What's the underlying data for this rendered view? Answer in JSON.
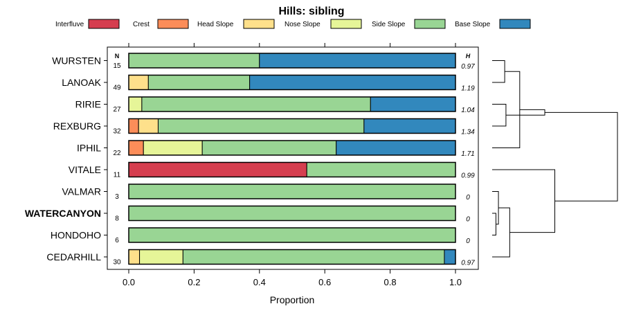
{
  "chart_data": {
    "type": "bar",
    "stacked": true,
    "orientation": "horizontal",
    "title": "Hills: sibling",
    "xlabel": "Proportion",
    "ylabel": "",
    "xlim": [
      0,
      1
    ],
    "xticks": [
      "0.0",
      "0.2",
      "0.4",
      "0.6",
      "0.8",
      "1.0"
    ],
    "n_header": "N",
    "h_header": "H",
    "legend_position": "top",
    "segments": [
      {
        "name": "Interfluve",
        "color": "#D53E4F"
      },
      {
        "name": "Crest",
        "color": "#FC8D59"
      },
      {
        "name": "Head Slope",
        "color": "#FEE08B"
      },
      {
        "name": "Nose Slope",
        "color": "#E6F598"
      },
      {
        "name": "Side Slope",
        "color": "#99D594"
      },
      {
        "name": "Base Slope",
        "color": "#3288BD"
      }
    ],
    "rows": [
      {
        "name": "WURSTEN",
        "n": "15",
        "h": "0.97",
        "bold": false,
        "values": [
          0,
          0,
          0,
          0,
          0.4,
          0.6
        ]
      },
      {
        "name": "LANOAK",
        "n": "49",
        "h": "1.19",
        "bold": false,
        "values": [
          0,
          0,
          0.06,
          0,
          0.31,
          0.63
        ]
      },
      {
        "name": "RIRIE",
        "n": "27",
        "h": "1.04",
        "bold": false,
        "values": [
          0,
          0,
          0,
          0.04,
          0.7,
          0.26
        ]
      },
      {
        "name": "REXBURG",
        "n": "32",
        "h": "1.34",
        "bold": false,
        "values": [
          0,
          0.03,
          0.06,
          0,
          0.63,
          0.28
        ]
      },
      {
        "name": "IPHIL",
        "n": "22",
        "h": "1.71",
        "bold": false,
        "values": [
          0,
          0.045,
          0,
          0.18,
          0.41,
          0.365
        ]
      },
      {
        "name": "VITALE",
        "n": "11",
        "h": "0.99",
        "bold": false,
        "values": [
          0.545,
          0,
          0,
          0,
          0.455,
          0
        ]
      },
      {
        "name": "VALMAR",
        "n": "3",
        "h": "0",
        "bold": false,
        "values": [
          0,
          0,
          0,
          0,
          1.0,
          0
        ]
      },
      {
        "name": "WATERCANYON",
        "n": "8",
        "h": "0",
        "bold": true,
        "values": [
          0,
          0,
          0,
          0,
          1.0,
          0
        ]
      },
      {
        "name": "HONDOHO",
        "n": "6",
        "h": "0",
        "bold": false,
        "values": [
          0,
          0,
          0,
          0,
          1.0,
          0
        ]
      },
      {
        "name": "CEDARHILL",
        "n": "30",
        "h": "0.97",
        "bold": false,
        "values": [
          0,
          0,
          0.033,
          0.133,
          0.8,
          0.034
        ]
      }
    ],
    "dendrogram": {
      "merges": [
        [
          0,
          1,
          0.1
        ],
        [
          2,
          3,
          0.11
        ],
        [
          10,
          4,
          0.22
        ],
        [
          11,
          12,
          0.42
        ],
        [
          7,
          8,
          0.03
        ],
        [
          14,
          6,
          0.05
        ],
        [
          15,
          9,
          0.14
        ],
        [
          16,
          5,
          0.5
        ],
        [
          13,
          17,
          1.0
        ]
      ]
    }
  }
}
